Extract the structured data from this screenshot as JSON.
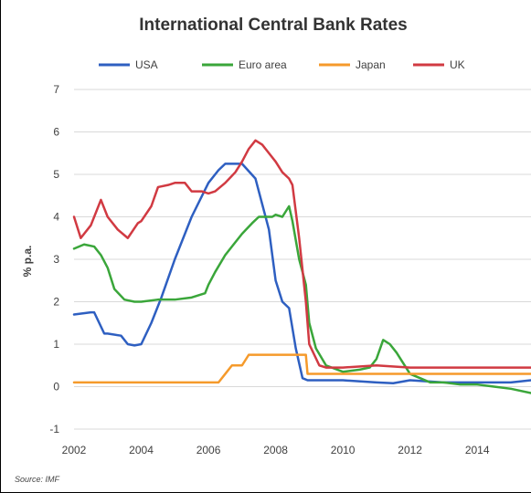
{
  "chart_data": {
    "type": "line",
    "title": "International Central Bank Rates",
    "ylabel": "% p.a.",
    "xlabel": "",
    "xlim": [
      2002,
      2015.6
    ],
    "ylim": [
      -1.2,
      7
    ],
    "xticks": [
      2002,
      2004,
      2006,
      2008,
      2010,
      2012,
      2014
    ],
    "yticks": [
      -1,
      0,
      1,
      2,
      3,
      4,
      5,
      6,
      7
    ],
    "grid": true,
    "legend": "top",
    "source": "Source:  IMF",
    "series": [
      {
        "name": "USA",
        "color": "#2e5fc1",
        "x": [
          2002.0,
          2002.5,
          2002.6,
          2002.9,
          2003.0,
          2003.4,
          2003.6,
          2003.8,
          2004.0,
          2004.3,
          2004.6,
          2005.0,
          2005.5,
          2006.0,
          2006.3,
          2006.5,
          2006.7,
          2007.0,
          2007.4,
          2007.6,
          2007.8,
          2008.0,
          2008.2,
          2008.4,
          2008.6,
          2008.8,
          2008.95,
          2009.5,
          2010.0,
          2011.0,
          2011.5,
          2012.0,
          2013.0,
          2014.0,
          2014.5,
          2015.0,
          2015.6
        ],
        "values": [
          1.7,
          1.75,
          1.75,
          1.25,
          1.25,
          1.2,
          1.0,
          0.97,
          1.0,
          1.5,
          2.1,
          3.0,
          4.0,
          4.8,
          5.1,
          5.25,
          5.25,
          5.25,
          4.9,
          4.3,
          3.7,
          2.5,
          2.0,
          1.85,
          0.9,
          0.2,
          0.15,
          0.15,
          0.15,
          0.1,
          0.08,
          0.15,
          0.1,
          0.1,
          0.1,
          0.1,
          0.15
        ]
      },
      {
        "name": "Euro area",
        "color": "#3aa63a",
        "x": [
          2002.0,
          2002.3,
          2002.6,
          2002.8,
          2003.0,
          2003.2,
          2003.5,
          2003.8,
          2004.0,
          2004.5,
          2005.0,
          2005.5,
          2005.9,
          2006.0,
          2006.2,
          2006.5,
          2006.8,
          2007.0,
          2007.3,
          2007.5,
          2007.7,
          2007.9,
          2008.0,
          2008.2,
          2008.4,
          2008.5,
          2008.7,
          2008.9,
          2009.0,
          2009.2,
          2009.5,
          2010.0,
          2010.5,
          2010.8,
          2011.0,
          2011.2,
          2011.4,
          2011.6,
          2011.8,
          2012.0,
          2012.3,
          2012.6,
          2013.0,
          2013.5,
          2014.0,
          2014.5,
          2015.0,
          2015.6
        ],
        "values": [
          3.25,
          3.35,
          3.3,
          3.1,
          2.8,
          2.3,
          2.05,
          2.0,
          2.0,
          2.05,
          2.05,
          2.1,
          2.2,
          2.4,
          2.7,
          3.1,
          3.4,
          3.6,
          3.85,
          4.0,
          4.0,
          4.0,
          4.05,
          4.0,
          4.25,
          3.9,
          3.0,
          2.4,
          1.5,
          0.9,
          0.5,
          0.35,
          0.4,
          0.45,
          0.65,
          1.1,
          1.0,
          0.8,
          0.55,
          0.3,
          0.2,
          0.1,
          0.1,
          0.05,
          0.05,
          0.0,
          -0.05,
          -0.15
        ]
      },
      {
        "name": "Japan",
        "color": "#f59a2b",
        "x": [
          2002.0,
          2006.0,
          2006.3,
          2006.5,
          2006.7,
          2007.0,
          2007.2,
          2008.0,
          2008.5,
          2008.9,
          2008.95,
          2009.0,
          2015.6
        ],
        "values": [
          0.1,
          0.1,
          0.1,
          0.3,
          0.5,
          0.5,
          0.75,
          0.75,
          0.75,
          0.75,
          0.3,
          0.3,
          0.3
        ]
      },
      {
        "name": "UK",
        "color": "#d13a42",
        "x": [
          2002.0,
          2002.2,
          2002.5,
          2002.8,
          2003.0,
          2003.3,
          2003.6,
          2003.9,
          2004.0,
          2004.3,
          2004.5,
          2004.8,
          2005.0,
          2005.3,
          2005.5,
          2005.8,
          2006.0,
          2006.2,
          2006.5,
          2006.8,
          2007.0,
          2007.2,
          2007.4,
          2007.6,
          2007.8,
          2008.0,
          2008.2,
          2008.4,
          2008.5,
          2008.7,
          2008.9,
          2009.0,
          2009.3,
          2009.5,
          2010.0,
          2011.0,
          2012.0,
          2013.0,
          2014.0,
          2015.0,
          2015.6
        ],
        "values": [
          4.0,
          3.5,
          3.8,
          4.4,
          4.0,
          3.7,
          3.5,
          3.85,
          3.9,
          4.25,
          4.7,
          4.75,
          4.8,
          4.8,
          4.6,
          4.6,
          4.55,
          4.6,
          4.8,
          5.05,
          5.3,
          5.6,
          5.8,
          5.7,
          5.5,
          5.3,
          5.05,
          4.9,
          4.75,
          3.5,
          2.0,
          1.0,
          0.5,
          0.45,
          0.45,
          0.5,
          0.45,
          0.45,
          0.45,
          0.45,
          0.45
        ]
      }
    ]
  }
}
